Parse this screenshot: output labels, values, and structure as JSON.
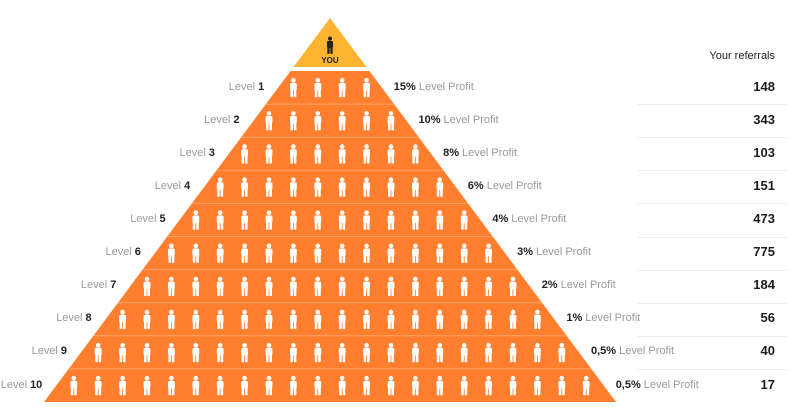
{
  "header": {
    "referrals_title": "Your referrals"
  },
  "apex": {
    "label": "YOU",
    "icon": "person-icon"
  },
  "colors": {
    "pyramid": "#ff7f2e",
    "apex": "#ffb431",
    "divider": "#ffa468",
    "figure": "#ffffff",
    "apex_figure": "#222222"
  },
  "levels": [
    {
      "label": "Level",
      "number": "1",
      "profit_value": "15%",
      "profit_text": "Level Profit",
      "referrals": "148",
      "icons": 4
    },
    {
      "label": "Level",
      "number": "2",
      "profit_value": "10%",
      "profit_text": "Level Profit",
      "referrals": "343",
      "icons": 6
    },
    {
      "label": "Level",
      "number": "3",
      "profit_value": "8%",
      "profit_text": "Level Profit",
      "referrals": "103",
      "icons": 8
    },
    {
      "label": "Level",
      "number": "4",
      "profit_value": "6%",
      "profit_text": "Level Profit",
      "referrals": "151",
      "icons": 10
    },
    {
      "label": "Level",
      "number": "5",
      "profit_value": "4%",
      "profit_text": "Level Profit",
      "referrals": "473",
      "icons": 12
    },
    {
      "label": "Level",
      "number": "6",
      "profit_value": "3%",
      "profit_text": "Level Profit",
      "referrals": "775",
      "icons": 14
    },
    {
      "label": "Level",
      "number": "7",
      "profit_value": "2%",
      "profit_text": "Level Profit",
      "referrals": "184",
      "icons": 16
    },
    {
      "label": "Level",
      "number": "8",
      "profit_value": "1%",
      "profit_text": "Level Profit",
      "referrals": "56",
      "icons": 18
    },
    {
      "label": "Level",
      "number": "9",
      "profit_value": "0,5%",
      "profit_text": "Level Profit",
      "referrals": "40",
      "icons": 20
    },
    {
      "label": "Level",
      "number": "10",
      "profit_value": "0,5%",
      "profit_text": "Level Profit",
      "referrals": "17",
      "icons": 22
    }
  ]
}
